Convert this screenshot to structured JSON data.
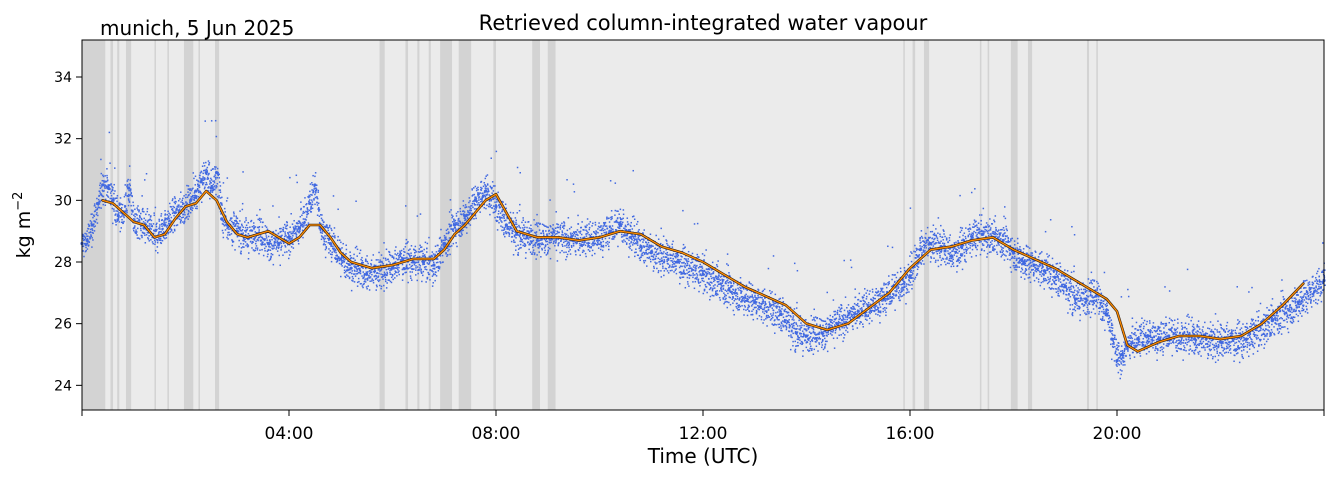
{
  "chart_data": {
    "type": "scatter",
    "title": "Retrieved column-integrated water vapour",
    "subtitle": "munich, 5 Jun 2025",
    "xlabel": "Time (UTC)",
    "ylabel": "kg m",
    "ylabel_superscript": "−2",
    "x_unit": "hours UTC",
    "xlim": [
      0,
      24
    ],
    "ylim": [
      23.2,
      35.2
    ],
    "x_ticks": [
      {
        "value": 4,
        "label": "04:00"
      },
      {
        "value": 8,
        "label": "08:00"
      },
      {
        "value": 12,
        "label": "12:00"
      },
      {
        "value": 16,
        "label": "16:00"
      },
      {
        "value": 20,
        "label": "20:00"
      }
    ],
    "y_ticks": [
      {
        "value": 24,
        "label": "24"
      },
      {
        "value": 26,
        "label": "26"
      },
      {
        "value": 28,
        "label": "28"
      },
      {
        "value": 30,
        "label": "30"
      },
      {
        "value": 32,
        "label": "32"
      },
      {
        "value": 34,
        "label": "34"
      }
    ],
    "grid": false,
    "background_color": "#ebebeb",
    "shade_color": "#d3d3d3",
    "shaded_intervals": [
      [
        0.0,
        0.45
      ],
      [
        0.55,
        0.6
      ],
      [
        0.68,
        0.72
      ],
      [
        0.85,
        0.95
      ],
      [
        1.4,
        1.43
      ],
      [
        1.65,
        1.68
      ],
      [
        1.97,
        2.15
      ],
      [
        2.25,
        2.28
      ],
      [
        2.57,
        2.65
      ],
      [
        5.75,
        5.85
      ],
      [
        6.25,
        6.3
      ],
      [
        6.48,
        6.52
      ],
      [
        6.7,
        6.74
      ],
      [
        6.92,
        7.15
      ],
      [
        7.28,
        7.52
      ],
      [
        7.95,
        8.0
      ],
      [
        8.7,
        8.85
      ],
      [
        9.0,
        9.15
      ],
      [
        15.87,
        15.9
      ],
      [
        16.05,
        16.1
      ],
      [
        16.27,
        16.37
      ],
      [
        17.35,
        17.38
      ],
      [
        17.5,
        17.53
      ],
      [
        17.95,
        18.08
      ],
      [
        18.28,
        18.36
      ],
      [
        19.42,
        19.46
      ],
      [
        19.6,
        19.63
      ]
    ],
    "series": [
      {
        "style": "points",
        "color": "#4169e1",
        "x": [
          0.0,
          0.1,
          0.2,
          0.3,
          0.4,
          0.5,
          0.6,
          0.7,
          0.8,
          0.9,
          1.0,
          1.2,
          1.4,
          1.6,
          1.8,
          2.0,
          2.1,
          2.2,
          2.3,
          2.4,
          2.5,
          2.6,
          2.7,
          2.8,
          3.0,
          3.2,
          3.4,
          3.6,
          3.8,
          4.0,
          4.2,
          4.4,
          4.5,
          4.6,
          4.8,
          5.0,
          5.2,
          5.5,
          6.0,
          6.2,
          6.4,
          6.6,
          6.8,
          7.0,
          7.2,
          7.4,
          7.6,
          7.8,
          8.0,
          8.2,
          8.4,
          8.6,
          8.8,
          9.0,
          9.5,
          10.0,
          10.2,
          10.4,
          10.6,
          10.8,
          11.0,
          11.5,
          12.0,
          12.5,
          13.0,
          13.5,
          13.8,
          14.0,
          14.3,
          14.6,
          15.0,
          15.5,
          16.0,
          16.2,
          16.4,
          16.6,
          16.8,
          17.0,
          17.2,
          17.4,
          17.6,
          17.8,
          18.0,
          18.2,
          18.4,
          18.6,
          18.8,
          19.0,
          19.2,
          19.4,
          19.6,
          19.8,
          19.9,
          20.0,
          20.1,
          20.2,
          20.4,
          20.6,
          20.8,
          21.0,
          21.5,
          22.0,
          22.5,
          23.0,
          23.5,
          24.0
        ],
        "y": [
          28.6,
          28.7,
          29.2,
          29.9,
          30.5,
          30.4,
          30.0,
          29.5,
          29.6,
          30.4,
          29.3,
          29.1,
          28.8,
          29.2,
          29.6,
          29.8,
          30.0,
          30.3,
          30.6,
          30.9,
          30.4,
          30.9,
          29.4,
          29.2,
          29.0,
          28.8,
          28.9,
          28.6,
          28.6,
          28.8,
          29.1,
          29.9,
          30.5,
          29.1,
          28.6,
          28.1,
          27.8,
          27.6,
          27.8,
          28.1,
          28.0,
          28.0,
          27.9,
          28.6,
          29.2,
          29.5,
          30.0,
          30.3,
          29.8,
          29.2,
          28.9,
          28.8,
          28.7,
          28.8,
          28.7,
          28.8,
          29.0,
          29.2,
          28.8,
          28.5,
          28.3,
          28.0,
          27.6,
          27.1,
          26.7,
          26.3,
          25.7,
          25.6,
          25.7,
          26.0,
          26.4,
          26.8,
          27.5,
          28.4,
          28.6,
          28.5,
          28.2,
          28.5,
          28.8,
          28.9,
          28.8,
          28.7,
          28.3,
          28.0,
          27.9,
          27.7,
          27.5,
          27.2,
          26.8,
          26.8,
          26.9,
          26.3,
          25.5,
          24.8,
          25.0,
          25.3,
          25.5,
          25.6,
          25.5,
          25.6,
          25.5,
          25.4,
          25.5,
          26.1,
          26.7,
          27.4
        ]
      },
      {
        "style": "line",
        "color": "#ff8c00",
        "x": [
          0.4,
          0.6,
          0.8,
          1.0,
          1.2,
          1.4,
          1.6,
          1.8,
          2.0,
          2.2,
          2.4,
          2.6,
          2.8,
          3.0,
          3.2,
          3.4,
          3.6,
          3.8,
          4.0,
          4.2,
          4.4,
          4.6,
          4.8,
          5.0,
          5.2,
          5.4,
          5.6,
          6.0,
          6.4,
          6.8,
          7.0,
          7.2,
          7.4,
          7.6,
          7.8,
          8.0,
          8.2,
          8.4,
          8.8,
          9.2,
          9.6,
          10.0,
          10.4,
          10.8,
          11.2,
          11.6,
          12.0,
          12.4,
          12.8,
          13.2,
          13.6,
          14.0,
          14.4,
          14.8,
          15.2,
          15.6,
          16.0,
          16.4,
          16.8,
          17.2,
          17.6,
          18.0,
          18.4,
          18.8,
          19.2,
          19.6,
          19.8,
          20.0,
          20.2,
          20.4,
          20.8,
          21.2,
          21.6,
          22.0,
          22.4,
          22.8,
          23.2,
          23.6
        ],
        "y": [
          30.0,
          29.9,
          29.6,
          29.3,
          29.2,
          28.8,
          28.9,
          29.4,
          29.8,
          29.9,
          30.3,
          30.0,
          29.3,
          28.9,
          28.8,
          28.9,
          29.0,
          28.8,
          28.6,
          28.8,
          29.2,
          29.2,
          28.8,
          28.3,
          28.0,
          27.9,
          27.8,
          27.9,
          28.1,
          28.1,
          28.4,
          28.9,
          29.2,
          29.6,
          30.0,
          30.2,
          29.6,
          29.0,
          28.8,
          28.8,
          28.7,
          28.8,
          29.0,
          28.9,
          28.5,
          28.3,
          28.0,
          27.6,
          27.2,
          26.9,
          26.6,
          26.0,
          25.8,
          26.0,
          26.5,
          27.0,
          27.8,
          28.4,
          28.5,
          28.7,
          28.8,
          28.4,
          28.1,
          27.8,
          27.4,
          27.0,
          26.8,
          26.4,
          25.3,
          25.1,
          25.4,
          25.6,
          25.6,
          25.5,
          25.6,
          26.0,
          26.6,
          27.3
        ]
      }
    ]
  }
}
